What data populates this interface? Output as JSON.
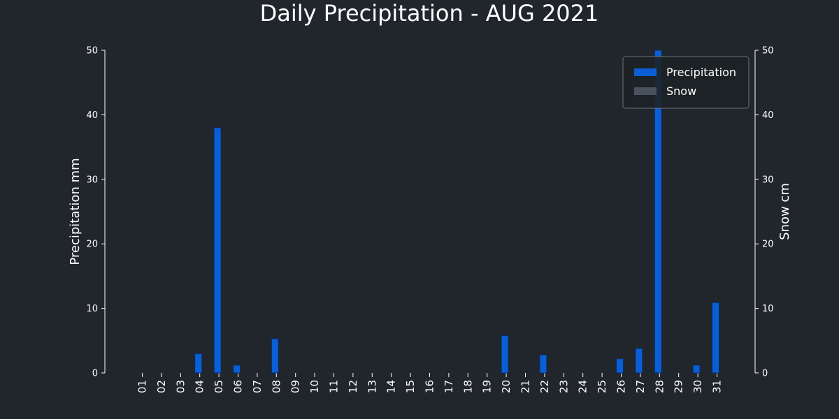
{
  "chart_data": {
    "type": "bar",
    "title": "Daily Precipitation - AUG 2021",
    "xlabel": "",
    "ylabel": "Precipitation mm",
    "y2label": "Snow cm",
    "ylim": [
      0,
      50
    ],
    "y2lim": [
      0,
      50
    ],
    "yticks": [
      "0",
      "10",
      "20",
      "30",
      "40",
      "50"
    ],
    "y2ticks": [
      "0",
      "10",
      "20",
      "30",
      "40",
      "50"
    ],
    "categories": [
      "01",
      "02",
      "03",
      "04",
      "05",
      "06",
      "07",
      "08",
      "09",
      "10",
      "11",
      "12",
      "13",
      "14",
      "15",
      "16",
      "17",
      "18",
      "19",
      "20",
      "21",
      "22",
      "23",
      "24",
      "25",
      "26",
      "27",
      "28",
      "29",
      "30",
      "31"
    ],
    "series": [
      {
        "name": "Precipitation",
        "axis": "left",
        "color": "#0a5fd6",
        "values": [
          0,
          0,
          0,
          3.0,
          38.0,
          1.2,
          0,
          5.3,
          0,
          0,
          0,
          0,
          0,
          0,
          0,
          0,
          0,
          0,
          0,
          5.8,
          0,
          2.8,
          0,
          0,
          0,
          2.2,
          3.8,
          50,
          0,
          1.2,
          10.9
        ]
      },
      {
        "name": "Snow",
        "axis": "right",
        "color": "#4a5260",
        "values": [
          0,
          0,
          0,
          0,
          0,
          0,
          0,
          0,
          0,
          0,
          0,
          0,
          0,
          0,
          0,
          0,
          0,
          0,
          0,
          0,
          0,
          0,
          0,
          0,
          0,
          0,
          0,
          0,
          0,
          0,
          0
        ]
      }
    ],
    "grid": false,
    "legend_position": "top-right",
    "colors": {
      "background": "#21262d",
      "text": "#ffffff",
      "legend_bg": "#1d2226",
      "legend_border": "#6b7178"
    }
  }
}
